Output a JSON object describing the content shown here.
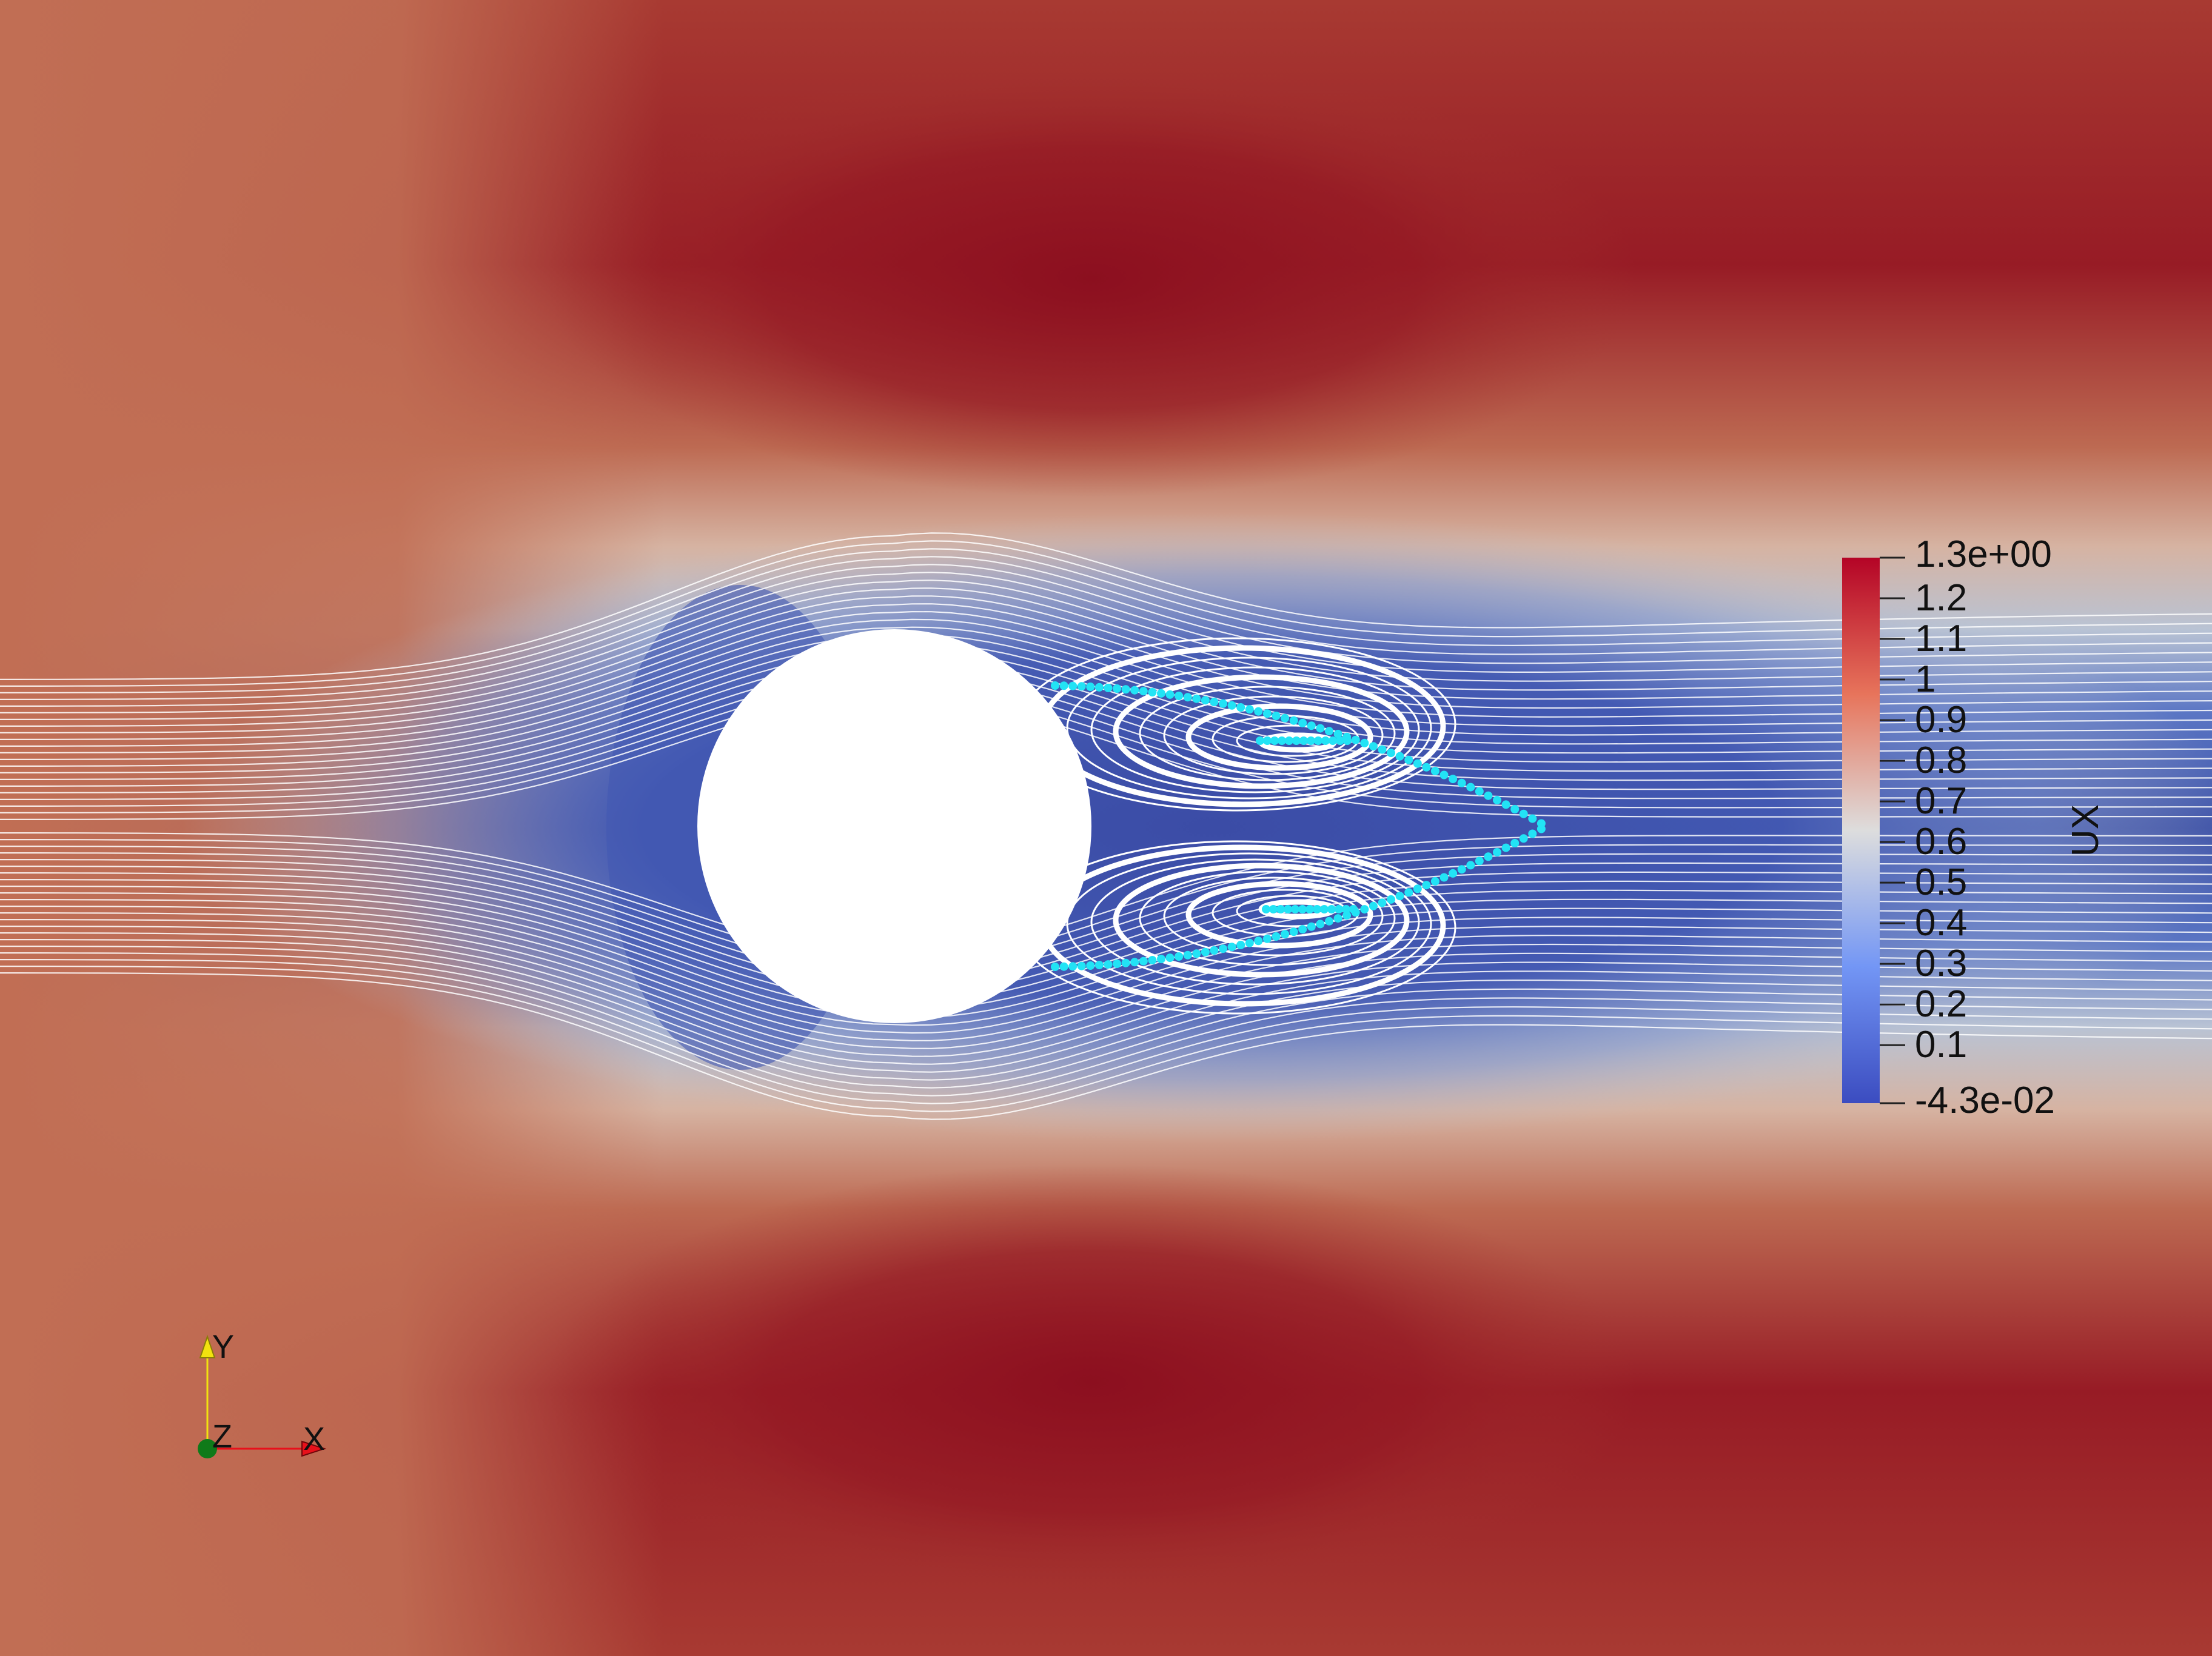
{
  "scalar_bar": {
    "title": "UX",
    "range_max_label": "1.3e+00",
    "range_min_label": "-4.3e-02",
    "tick_labels": [
      "1.2",
      "1.1",
      "1",
      "0.9",
      "0.8",
      "0.7",
      "0.6",
      "0.5",
      "0.4",
      "0.3",
      "0.2",
      "0.1"
    ],
    "colors": {
      "high": "#b40426",
      "upper": "#e7745b",
      "mid": "#dddddd",
      "lower": "#7396f5",
      "low": "#3b4cc0"
    }
  },
  "orientation_axes": {
    "y_label": "Y",
    "z_label": "Z",
    "x_label": "X",
    "x_color": "#e8101a",
    "y_color": "#f2e20f",
    "z_color": "#0f7a19"
  },
  "scene": {
    "obstacle_color": "#ffffff",
    "streamline_color": "#ffffff",
    "separation_marker_color": "#22e3f5"
  }
}
